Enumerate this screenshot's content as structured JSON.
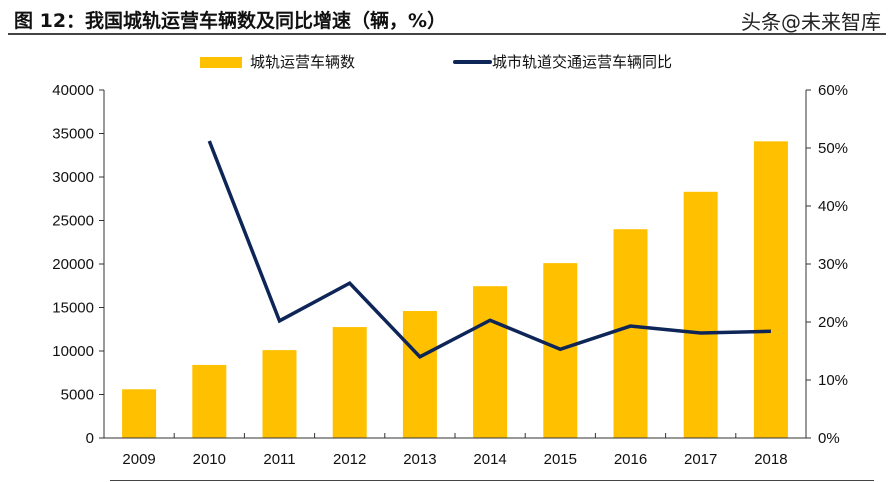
{
  "title": "图 12：我国城轨运营车辆数及同比增速（辆，%）",
  "watermark": "头条@未来智库",
  "chart_data": {
    "type": "bar+line",
    "title": "图 12：我国城轨运营车辆数及同比增速（辆，%）",
    "categories": [
      "2009",
      "2010",
      "2011",
      "2012",
      "2013",
      "2014",
      "2015",
      "2016",
      "2017",
      "2018"
    ],
    "legend_position": "top",
    "grid": false,
    "series": [
      {
        "name": "城轨运营车辆数",
        "type": "bar",
        "axis": "left",
        "color": "#FFC000",
        "values": [
          5600,
          8400,
          10100,
          12750,
          14600,
          17450,
          20100,
          24000,
          28300,
          34100
        ]
      },
      {
        "name": "城市轨道交通运营车辆同比",
        "type": "line",
        "axis": "right",
        "color": "#0E2557",
        "values": [
          null,
          51.2,
          20.2,
          26.7,
          14.0,
          20.3,
          15.3,
          19.3,
          18.1,
          18.4
        ]
      }
    ],
    "ylim_left": [
      0,
      40000
    ],
    "yticks_left": [
      "0",
      "5000",
      "10000",
      "15000",
      "20000",
      "25000",
      "30000",
      "35000",
      "40000"
    ],
    "ylim_right": [
      0,
      60
    ],
    "yticks_right": [
      "0%",
      "10%",
      "20%",
      "30%",
      "40%",
      "50%",
      "60%"
    ]
  }
}
